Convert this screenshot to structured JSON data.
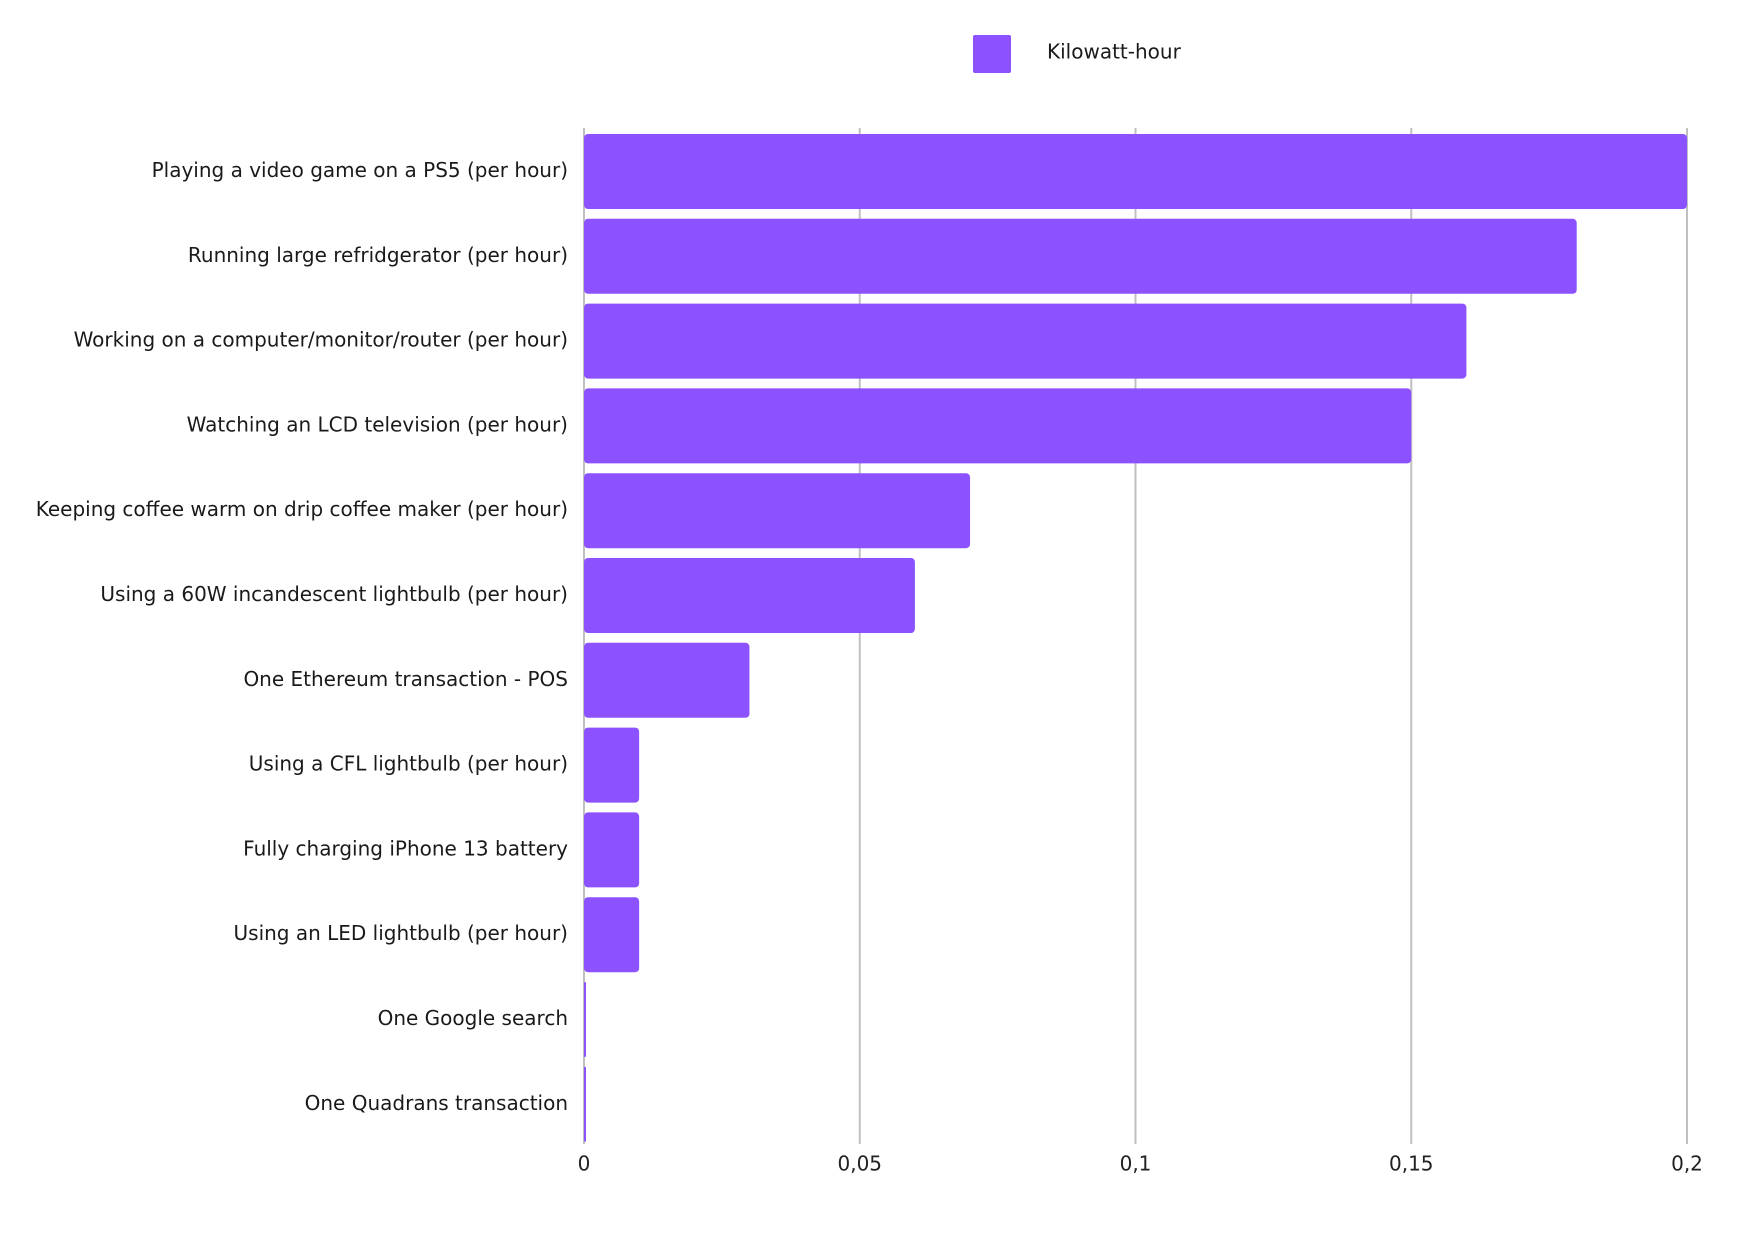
{
  "chart_data": {
    "type": "bar",
    "orientation": "horizontal",
    "categories": [
      "Playing a video game on a PS5 (per hour)",
      "Running large refridgerator (per hour)",
      "Working on a computer/monitor/router (per hour)",
      "Watching an LCD television (per hour)",
      "Keeping coffee warm on drip coffee maker (per hour)",
      "Using a 60W incandescent lightbulb (per hour)",
      "One Ethereum transaction - POS",
      "Using a CFL lightbulb (per hour)",
      "Fully charging iPhone 13 battery",
      "Using an LED lightbulb (per hour)",
      "One Google search",
      "One Quadrans transaction"
    ],
    "series": [
      {
        "name": "Kilowatt-hour",
        "color": "#8c52ff",
        "values": [
          0.2,
          0.18,
          0.16,
          0.15,
          0.07,
          0.06,
          0.03,
          0.01,
          0.01,
          0.01,
          0.0003,
          0.0002
        ]
      }
    ],
    "xlim": [
      0,
      0.2
    ],
    "x_ticks": [
      0,
      0.05,
      0.1,
      0.15,
      0.2
    ],
    "x_tick_labels": [
      "0",
      "0,05",
      "0,1",
      "0,15",
      "0,2"
    ],
    "xlabel": "",
    "ylabel": "",
    "title": "",
    "grid": true,
    "grid_color": "#c0c0c0",
    "legend_position": "top-center"
  }
}
